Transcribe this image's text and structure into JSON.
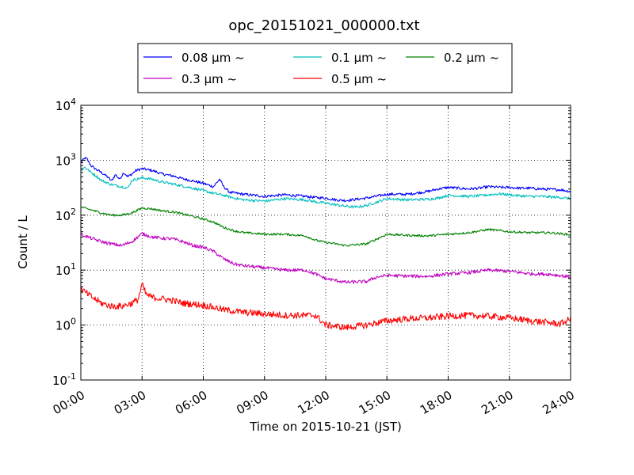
{
  "chart_data": {
    "type": "line",
    "title": "opc_20151021_000000.txt",
    "xlabel": "Time on 2015-10-21 (JST)",
    "ylabel": "Count / L",
    "x_unit": "hours",
    "xlim": [
      0,
      24
    ],
    "ylim": [
      0.1,
      10000
    ],
    "y_scale": "log",
    "grid": true,
    "legend_placement": "top-center",
    "legend_columns": 3,
    "x_ticks": [
      0,
      3,
      6,
      9,
      12,
      15,
      18,
      21,
      24
    ],
    "x_tick_labels": [
      "00:00",
      "03:00",
      "06:00",
      "09:00",
      "12:00",
      "15:00",
      "18:00",
      "21:00",
      "24:00"
    ],
    "y_ticks": [
      0.1,
      1,
      10,
      100,
      1000,
      10000
    ],
    "y_tick_labels": [
      {
        "base": "10",
        "exp": "-1"
      },
      {
        "base": "10",
        "exp": "0"
      },
      {
        "base": "10",
        "exp": "1"
      },
      {
        "base": "10",
        "exp": "2"
      },
      {
        "base": "10",
        "exp": "3"
      },
      {
        "base": "10",
        "exp": "4"
      }
    ],
    "series": [
      {
        "name": "0.08 μm ~",
        "color": "#0000ff",
        "noise": 0.025,
        "x": [
          0,
          0.2,
          0.3,
          0.5,
          0.7,
          1,
          1.3,
          1.5,
          1.7,
          1.9,
          2.1,
          2.3,
          2.5,
          2.7,
          3,
          3.5,
          4,
          4.5,
          5,
          5.5,
          6,
          6.5,
          6.8,
          7,
          7.3,
          8,
          9,
          10,
          11,
          11.5,
          12,
          12.5,
          13,
          13.5,
          14,
          15,
          16,
          17,
          17.5,
          18,
          18.5,
          19,
          19.5,
          20,
          20.5,
          21,
          21.5,
          22,
          22.5,
          23,
          23.5,
          24
        ],
        "y": [
          900,
          1100,
          1050,
          800,
          700,
          600,
          500,
          420,
          550,
          450,
          600,
          500,
          560,
          650,
          700,
          650,
          560,
          520,
          460,
          420,
          380,
          330,
          450,
          330,
          260,
          240,
          220,
          235,
          220,
          210,
          205,
          190,
          185,
          195,
          205,
          240,
          240,
          270,
          300,
          320,
          310,
          300,
          310,
          330,
          320,
          320,
          310,
          310,
          300,
          295,
          290,
          270
        ]
      },
      {
        "name": "0.1 μm ~",
        "color": "#00bfbf",
        "noise": 0.025,
        "x": [
          0,
          0.2,
          0.5,
          0.8,
          1,
          1.5,
          2,
          2.3,
          2.5,
          3,
          3.5,
          4,
          4.5,
          5,
          5.5,
          6,
          6.5,
          7,
          7.5,
          8,
          9,
          10,
          11,
          11.5,
          12,
          13,
          13.5,
          14,
          15,
          16,
          17,
          17.5,
          18,
          18.5,
          19,
          19.5,
          20,
          20.5,
          21,
          21.5,
          22,
          22.5,
          23,
          23.5,
          24
        ],
        "y": [
          650,
          750,
          600,
          500,
          430,
          360,
          330,
          310,
          430,
          480,
          450,
          400,
          370,
          340,
          310,
          280,
          250,
          230,
          205,
          190,
          180,
          200,
          190,
          175,
          165,
          145,
          140,
          150,
          200,
          190,
          195,
          205,
          230,
          225,
          220,
          225,
          235,
          245,
          235,
          225,
          220,
          220,
          215,
          210,
          200
        ]
      },
      {
        "name": "0.2 μm ~",
        "color": "#008000",
        "noise": 0.02,
        "x": [
          0,
          0.5,
          1,
          1.5,
          2,
          2.5,
          3,
          3.5,
          4,
          4.5,
          5,
          5.5,
          6,
          6.5,
          7,
          7.5,
          8,
          9,
          10,
          11,
          11.5,
          12,
          13,
          14,
          15,
          16,
          17,
          18,
          19,
          20,
          21,
          22,
          23,
          24
        ],
        "y": [
          140,
          125,
          110,
          100,
          100,
          110,
          135,
          130,
          120,
          115,
          105,
          95,
          85,
          75,
          60,
          52,
          48,
          45,
          45,
          42,
          35,
          32,
          28,
          30,
          45,
          43,
          42,
          45,
          48,
          55,
          50,
          48,
          48,
          44
        ]
      },
      {
        "name": "0.3 μm ~",
        "color": "#bf00bf",
        "noise": 0.03,
        "x": [
          0,
          0.5,
          1,
          1.5,
          2,
          2.5,
          3,
          3.5,
          4,
          4.5,
          5,
          5.5,
          6,
          6.5,
          7,
          7.5,
          8,
          9,
          10,
          11,
          11.5,
          12,
          13,
          14,
          14.5,
          15,
          16,
          17,
          18,
          19,
          20,
          21,
          22,
          23,
          24
        ],
        "y": [
          45,
          38,
          33,
          30,
          28,
          33,
          46,
          40,
          38,
          37,
          33,
          28,
          26,
          22,
          16,
          13,
          12,
          11,
          10,
          10,
          8.5,
          7,
          6,
          6.2,
          7.5,
          8,
          7.8,
          7.7,
          8.5,
          9,
          10,
          9.5,
          8.6,
          8.4,
          7.5
        ]
      },
      {
        "name": "0.5 μm ~",
        "color": "#ff0000",
        "noise": 0.06,
        "x": [
          0,
          0.5,
          1,
          1.5,
          2,
          2.5,
          2.8,
          3,
          3.2,
          3.5,
          4,
          4.5,
          5,
          5.5,
          6,
          6.5,
          7,
          8,
          9,
          10,
          11,
          11.5,
          12,
          12.5,
          13,
          13.5,
          14,
          15,
          16,
          17,
          18,
          19,
          20,
          21,
          22,
          23,
          23.5,
          24
        ],
        "y": [
          4.5,
          3.3,
          2.5,
          2.2,
          2.2,
          2.5,
          2.9,
          5.5,
          3.6,
          3.2,
          3.0,
          2.8,
          2.5,
          2.4,
          2.3,
          2.1,
          1.9,
          1.7,
          1.6,
          1.5,
          1.5,
          1.5,
          1.0,
          0.95,
          0.9,
          0.95,
          1.0,
          1.2,
          1.3,
          1.35,
          1.45,
          1.5,
          1.45,
          1.35,
          1.2,
          1.1,
          1.05,
          1.3
        ]
      }
    ]
  }
}
